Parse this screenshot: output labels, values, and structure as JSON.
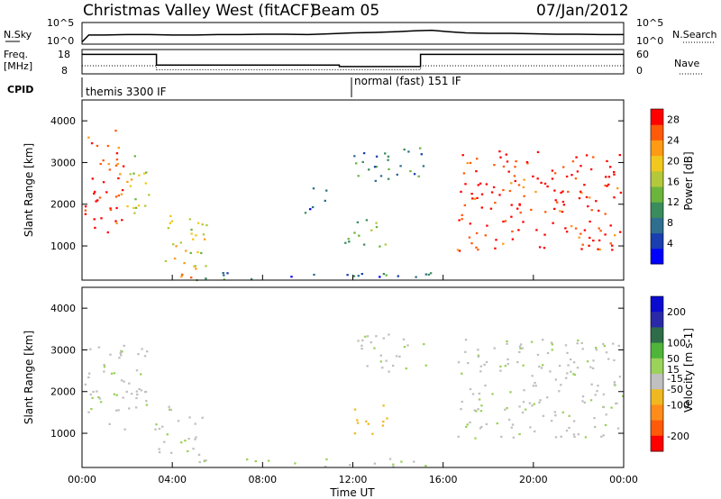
{
  "header": {
    "title": "Christmas Valley West (fitACF)",
    "beam": "Beam 05",
    "date": "07/Jan/2012"
  },
  "noise_panel": {
    "left_label": "N.Sky",
    "right_label": "N.Search",
    "y_ticks": [
      "10^5",
      "10^0"
    ]
  },
  "freq_panel": {
    "left_label_1": "Freq.",
    "left_label_2": "[MHz]",
    "right_label": "Nave",
    "left_ticks": [
      "18",
      "8"
    ],
    "right_ticks": [
      "60",
      "0"
    ]
  },
  "cpid": {
    "label": "CPID",
    "mode1": "themis 3300 IF",
    "mode2": "normal (fast) 151 IF"
  },
  "colors": {
    "power_scale": [
      "#0000ff",
      "#1a3fb0",
      "#2f6e8e",
      "#3a8c5c",
      "#6cb53c",
      "#b4c83c",
      "#f0c81e",
      "#ff9a14",
      "#ff5a0a",
      "#ff0000"
    ],
    "velocity_scale": [
      "#0b0bd0",
      "#2a2aa8",
      "#2f6d4a",
      "#4fb43a",
      "#9ad25a",
      "#c0c0c0",
      "#f0b820",
      "#ff8c1a",
      "#ff5a0a",
      "#ff0000"
    ],
    "ground_scatter": "#bfbfbf"
  },
  "chart_data": [
    {
      "type": "line",
      "name": "noise",
      "x": [
        0,
        0.3,
        1,
        2,
        3,
        4,
        5,
        6,
        7,
        8,
        9,
        10,
        11,
        12,
        13,
        14,
        14.8,
        15.5,
        16.2,
        17,
        18,
        19,
        20,
        21,
        22,
        23,
        24
      ],
      "y_log": [
        0.5,
        2.1,
        2.1,
        2.2,
        2.2,
        2.1,
        2.1,
        2.2,
        2.2,
        2.3,
        2.3,
        2.2,
        2.4,
        2.6,
        2.7,
        2.9,
        3.1,
        3.2,
        2.9,
        2.6,
        2.5,
        2.5,
        2.4,
        2.3,
        2.3,
        2.2,
        2.2
      ],
      "ylabel": "N.Sky",
      "ylim": [
        0,
        5
      ]
    },
    {
      "type": "line",
      "name": "frequency",
      "x": [
        0,
        3.3,
        3.3,
        11.4,
        11.4,
        15.0,
        15.0,
        24
      ],
      "y": [
        16.0,
        16.0,
        11.6,
        11.6,
        11.0,
        11.0,
        16.0,
        16.0
      ],
      "nave_x": [
        0,
        3.3,
        3.3,
        15.0,
        15.0,
        24
      ],
      "nave_y": [
        20,
        20,
        10,
        10,
        20,
        20
      ],
      "ylabel": "Freq. [MHz]",
      "ylim": [
        8,
        18
      ]
    },
    {
      "type": "heatmap",
      "name": "power",
      "title": "",
      "xlabel": "",
      "ylabel": "Slant Range [km]",
      "xlim": [
        0,
        24
      ],
      "ylim": [
        180,
        4500
      ],
      "x_ticks": [
        0,
        4,
        8,
        12,
        16,
        20,
        24
      ],
      "y_ticks": [
        1000,
        2000,
        3000,
        4000
      ],
      "colorbar_label": "Power [dB]",
      "colorbar_ticks": [
        4,
        8,
        12,
        16,
        20,
        24,
        28
      ],
      "colorbar_range": [
        0,
        30
      ],
      "regions": [
        {
          "t0": 0.1,
          "t1": 1.8,
          "r0": 1100,
          "r1": 3800,
          "level": 0.9
        },
        {
          "t0": 1.8,
          "t1": 3.2,
          "r0": 1800,
          "r1": 3200,
          "level": 0.55
        },
        {
          "t0": 3.2,
          "t1": 5.5,
          "r0": 500,
          "r1": 1800,
          "level": 0.6
        },
        {
          "t0": 4.0,
          "t1": 5.6,
          "r0": 250,
          "r1": 500,
          "level": 0.9
        },
        {
          "t0": 5.0,
          "t1": 15.5,
          "r0": 180,
          "r1": 420,
          "level": 0.25
        },
        {
          "t0": 9.8,
          "t1": 10.8,
          "r0": 1800,
          "r1": 2500,
          "level": 0.2
        },
        {
          "t0": 11.6,
          "t1": 13.6,
          "r0": 1000,
          "r1": 1700,
          "level": 0.5
        },
        {
          "t0": 12.0,
          "t1": 15.2,
          "r0": 2500,
          "r1": 3400,
          "level": 0.3
        },
        {
          "t0": 16.6,
          "t1": 24,
          "r0": 900,
          "r1": 3300,
          "level": 0.95
        }
      ]
    },
    {
      "type": "heatmap",
      "name": "velocity",
      "title": "",
      "xlabel": "Time UT",
      "ylabel": "Slant Range [km]",
      "xlim": [
        0,
        24
      ],
      "ylim": [
        180,
        4500
      ],
      "x_tick_labels": [
        "00:00",
        "04:00",
        "08:00",
        "12:00",
        "16:00",
        "20:00",
        "00:00"
      ],
      "y_ticks": [
        1000,
        2000,
        3000,
        4000
      ],
      "colorbar_label": "Velocity [m s-1]",
      "colorbar_ticks": [
        200,
        100,
        50,
        15,
        -15,
        -50,
        -100,
        -200
      ],
      "colorbar_range": [
        -250,
        250
      ],
      "regions": [
        {
          "t0": 0.1,
          "t1": 3.0,
          "r0": 1100,
          "r1": 3200,
          "value": 0
        },
        {
          "t0": 3.2,
          "t1": 5.4,
          "r0": 500,
          "r1": 1700,
          "value": 0
        },
        {
          "t0": 5.0,
          "t1": 15.5,
          "r0": 180,
          "r1": 420,
          "value": 20
        },
        {
          "t0": 11.8,
          "t1": 13.6,
          "r0": 1000,
          "r1": 1700,
          "value": -80
        },
        {
          "t0": 12.0,
          "t1": 15.2,
          "r0": 2500,
          "r1": 3400,
          "value": 0
        },
        {
          "t0": 16.6,
          "t1": 24,
          "r0": 900,
          "r1": 3300,
          "value": 0
        }
      ]
    }
  ]
}
